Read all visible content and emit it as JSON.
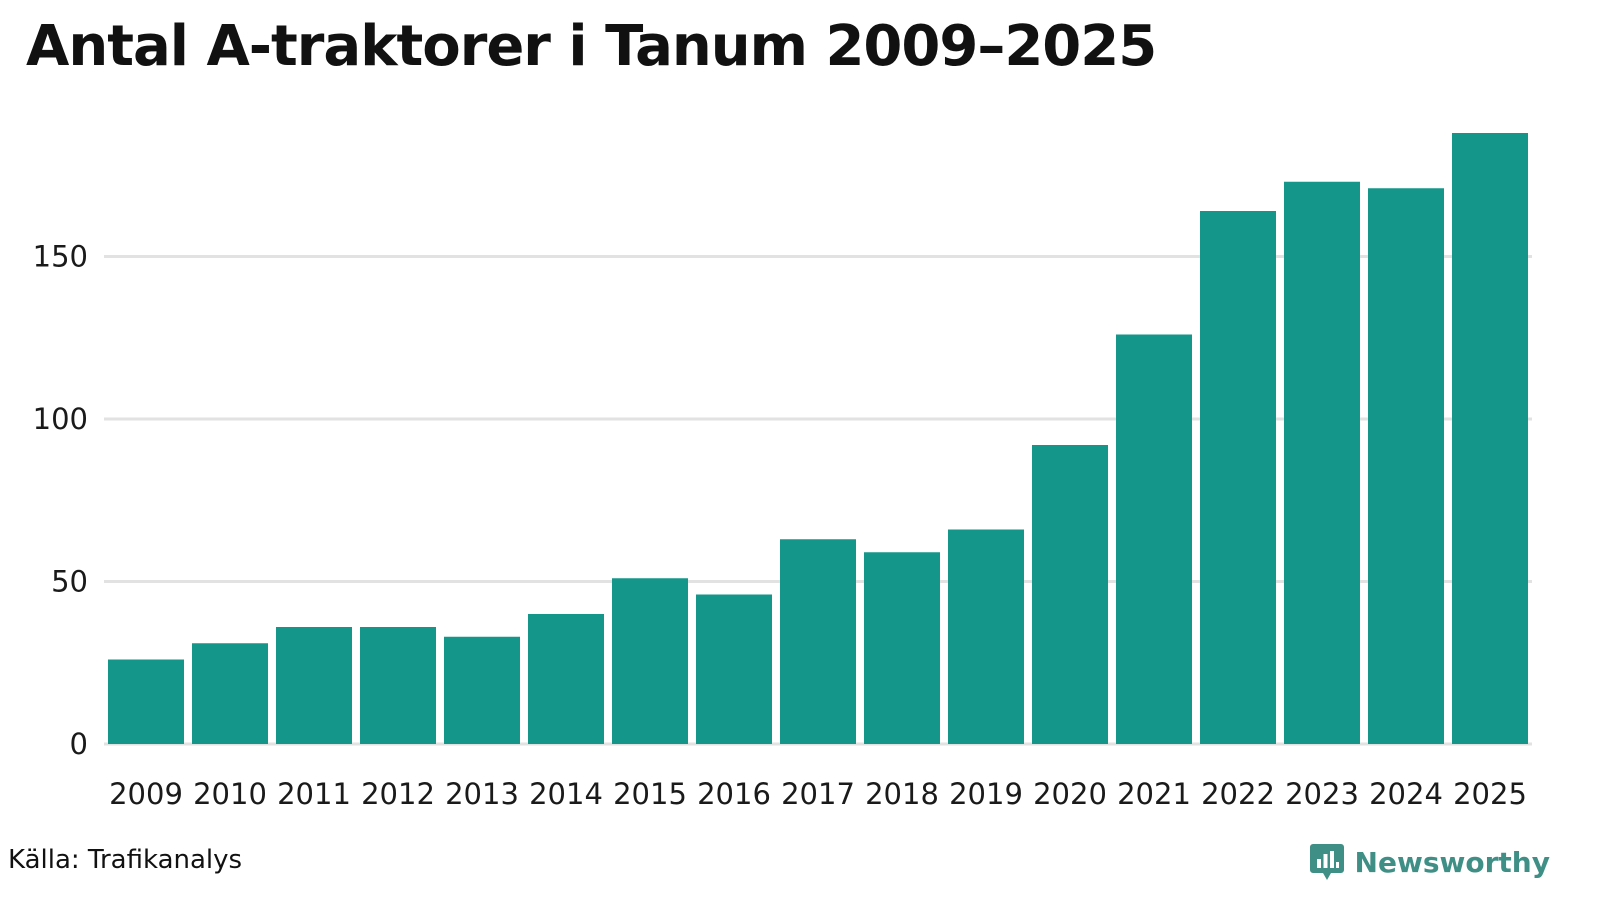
{
  "chart_data": {
    "type": "bar",
    "title": "Antal A-traktorer i Tanum 2009–2025",
    "xlabel": "",
    "ylabel": "",
    "categories": [
      "2009",
      "2010",
      "2011",
      "2012",
      "2013",
      "2014",
      "2015",
      "2016",
      "2017",
      "2018",
      "2019",
      "2020",
      "2021",
      "2022",
      "2023",
      "2024",
      "2025"
    ],
    "values": [
      26,
      31,
      36,
      36,
      33,
      40,
      51,
      46,
      63,
      59,
      66,
      92,
      126,
      164,
      173,
      171,
      188
    ],
    "ylim": [
      0,
      188
    ],
    "yticks": [
      "0",
      "50",
      "100",
      "150"
    ],
    "grid": true,
    "bar_color": "#14968a",
    "grid_color": "#e2e2e2"
  },
  "footer": {
    "source": "Källa: Trafikanalys",
    "brand": "Newsworthy",
    "brand_icon": "newsworthy-logo-icon",
    "brand_color": "#3f8f86"
  }
}
